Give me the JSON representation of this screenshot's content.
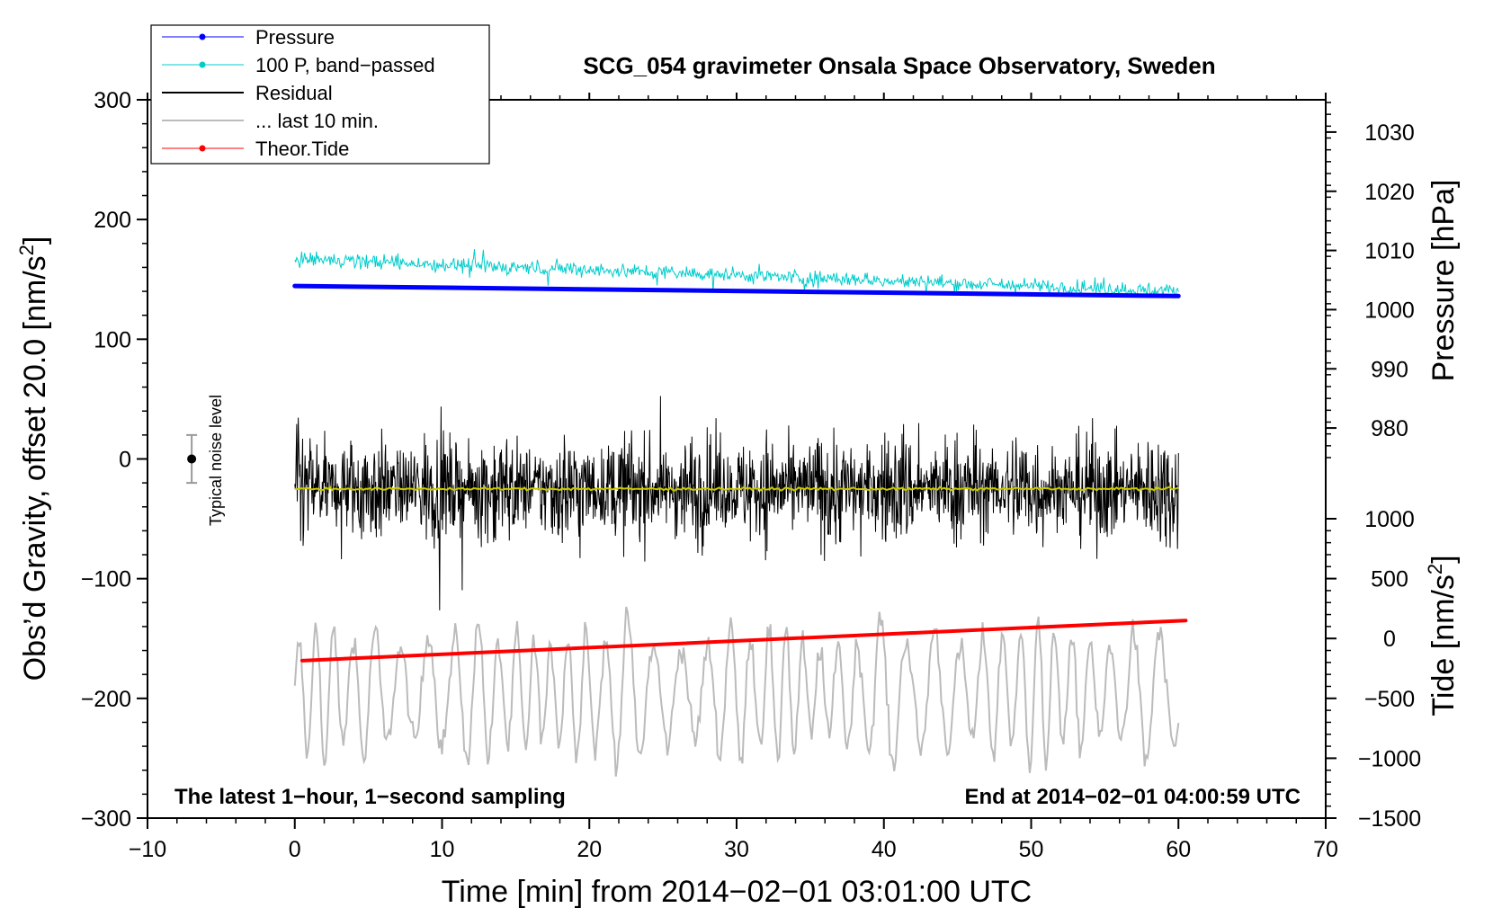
{
  "chart_data": {
    "type": "line",
    "title": "SCG_054 gravimeter Onsala Space Observatory, Sweden",
    "xlabel": "Time [min] from 2014−02−01 03:01:00 UTC",
    "ylabel_left": "Obs’d Gravity, offset 20.0 [nm/s",
    "ylabel_left_sup": "2",
    "ylabel_left_close": "]",
    "ylabel_right_top": "Pressure [hPa]",
    "ylabel_right_bottom": "Tide [nm/s",
    "ylabel_right_bottom_sup": "2",
    "ylabel_right_bottom_close": "]",
    "annotation_left": "The latest 1−hour, 1−second sampling",
    "annotation_right": "End at 2014−02−01 04:00:59 UTC",
    "noise_label": "Typical noise level",
    "xlim": [
      -10,
      70
    ],
    "ylim_left": [
      -300,
      300
    ],
    "x_ticks": [
      "−10",
      "0",
      "10",
      "20",
      "30",
      "40",
      "50",
      "60",
      "70"
    ],
    "y_ticks_left": [
      "300",
      "200",
      "100",
      "0",
      "−100",
      "−200",
      "−300"
    ],
    "pressure_ticks": [
      "1030",
      "1020",
      "1010",
      "1000",
      "990",
      "980"
    ],
    "tide_ticks": [
      "1000",
      "500",
      "0",
      "−500",
      "−1000",
      "−1500"
    ],
    "pressure_range_hpa": [
      975,
      1035
    ],
    "tide_range": [
      -1500,
      1000
    ],
    "legend": [
      {
        "label": "Pressure",
        "color": "#0000ff",
        "marker": true
      },
      {
        "label": "100 P, band−passed",
        "color": "#00cccc",
        "marker": true
      },
      {
        "label": "Residual",
        "color": "#000000",
        "marker": false
      },
      {
        "label": "... last 10 min.",
        "color": "#bbbbbb",
        "marker": false
      },
      {
        "label": "Theor.Tide",
        "color": "#ff0000",
        "marker": true
      }
    ],
    "series": [
      {
        "name": "Pressure",
        "color": "#0000ff",
        "unit": "hPa",
        "x_range": [
          0,
          60
        ],
        "start": 1004.0,
        "end": 1002.3
      },
      {
        "name": "100 P, band−passed",
        "color": "#00cccc",
        "unit": "nm/s2",
        "x_range": [
          0,
          60
        ],
        "start": 167,
        "end": 140,
        "amplitude": 10
      },
      {
        "name": "Residual",
        "color": "#000000",
        "unit": "nm/s2",
        "x_range": [
          0,
          60
        ],
        "mean": -25,
        "amplitude": 55
      },
      {
        "name": "Residual smoothed",
        "color": "#c8c800",
        "unit": "nm/s2",
        "x_range": [
          0,
          60
        ],
        "mean": -25
      },
      {
        "name": "... last 10 min.",
        "color": "#bbbbbb",
        "unit": "nm/s2",
        "x_range": [
          0,
          60
        ],
        "mean": -195,
        "amplitude": 65
      },
      {
        "name": "Theor.Tide",
        "color": "#ff0000",
        "unit": "nm/s2",
        "x_range": [
          0.5,
          60.5
        ],
        "start": -185,
        "end": 150
      }
    ],
    "noise_bar": {
      "x": -7,
      "center": 0,
      "half_range": 20
    }
  }
}
